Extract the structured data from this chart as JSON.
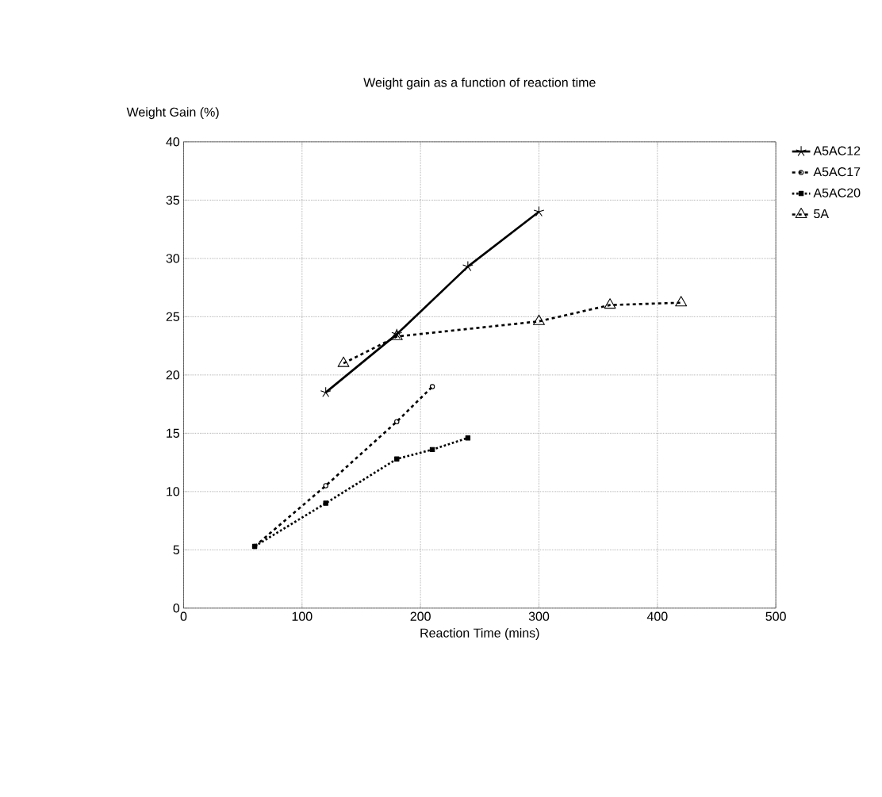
{
  "chart_data": {
    "type": "line",
    "title": "Weight gain as a function of reaction time",
    "xlabel": "Reaction Time (mins)",
    "ylabel": "Weight Gain (%)",
    "xlim": [
      0,
      500
    ],
    "xticks": [
      0,
      100,
      200,
      300,
      400,
      500
    ],
    "ylim": [
      0,
      40
    ],
    "yticks": [
      0,
      5,
      10,
      15,
      20,
      25,
      30,
      35,
      40
    ],
    "grid": true,
    "legend": "right",
    "series": [
      {
        "name": "A5AC12",
        "color": "#000000",
        "marker": "cross",
        "line_style": "solid",
        "x": [
          120,
          180,
          240,
          300
        ],
        "values": [
          18.5,
          23.5,
          29.3,
          34
        ]
      },
      {
        "name": "A5AC17",
        "color": "#000000",
        "marker": "circle",
        "line_style": "dashed",
        "x": [
          60,
          120,
          180,
          210
        ],
        "values": [
          5.3,
          10.5,
          16,
          19
        ]
      },
      {
        "name": "A5AC20",
        "color": "#000000",
        "marker": "square",
        "line_style": "dotted",
        "x": [
          60,
          120,
          180,
          210,
          240
        ],
        "values": [
          5.3,
          9,
          12.8,
          13.6,
          14.6
        ]
      },
      {
        "name": "5A",
        "color": "#000000",
        "marker": "triangle",
        "line_style": "dashed",
        "x": [
          135,
          180,
          300,
          360,
          420
        ],
        "values": [
          21,
          23.3,
          24.6,
          26,
          26.2
        ]
      }
    ]
  }
}
